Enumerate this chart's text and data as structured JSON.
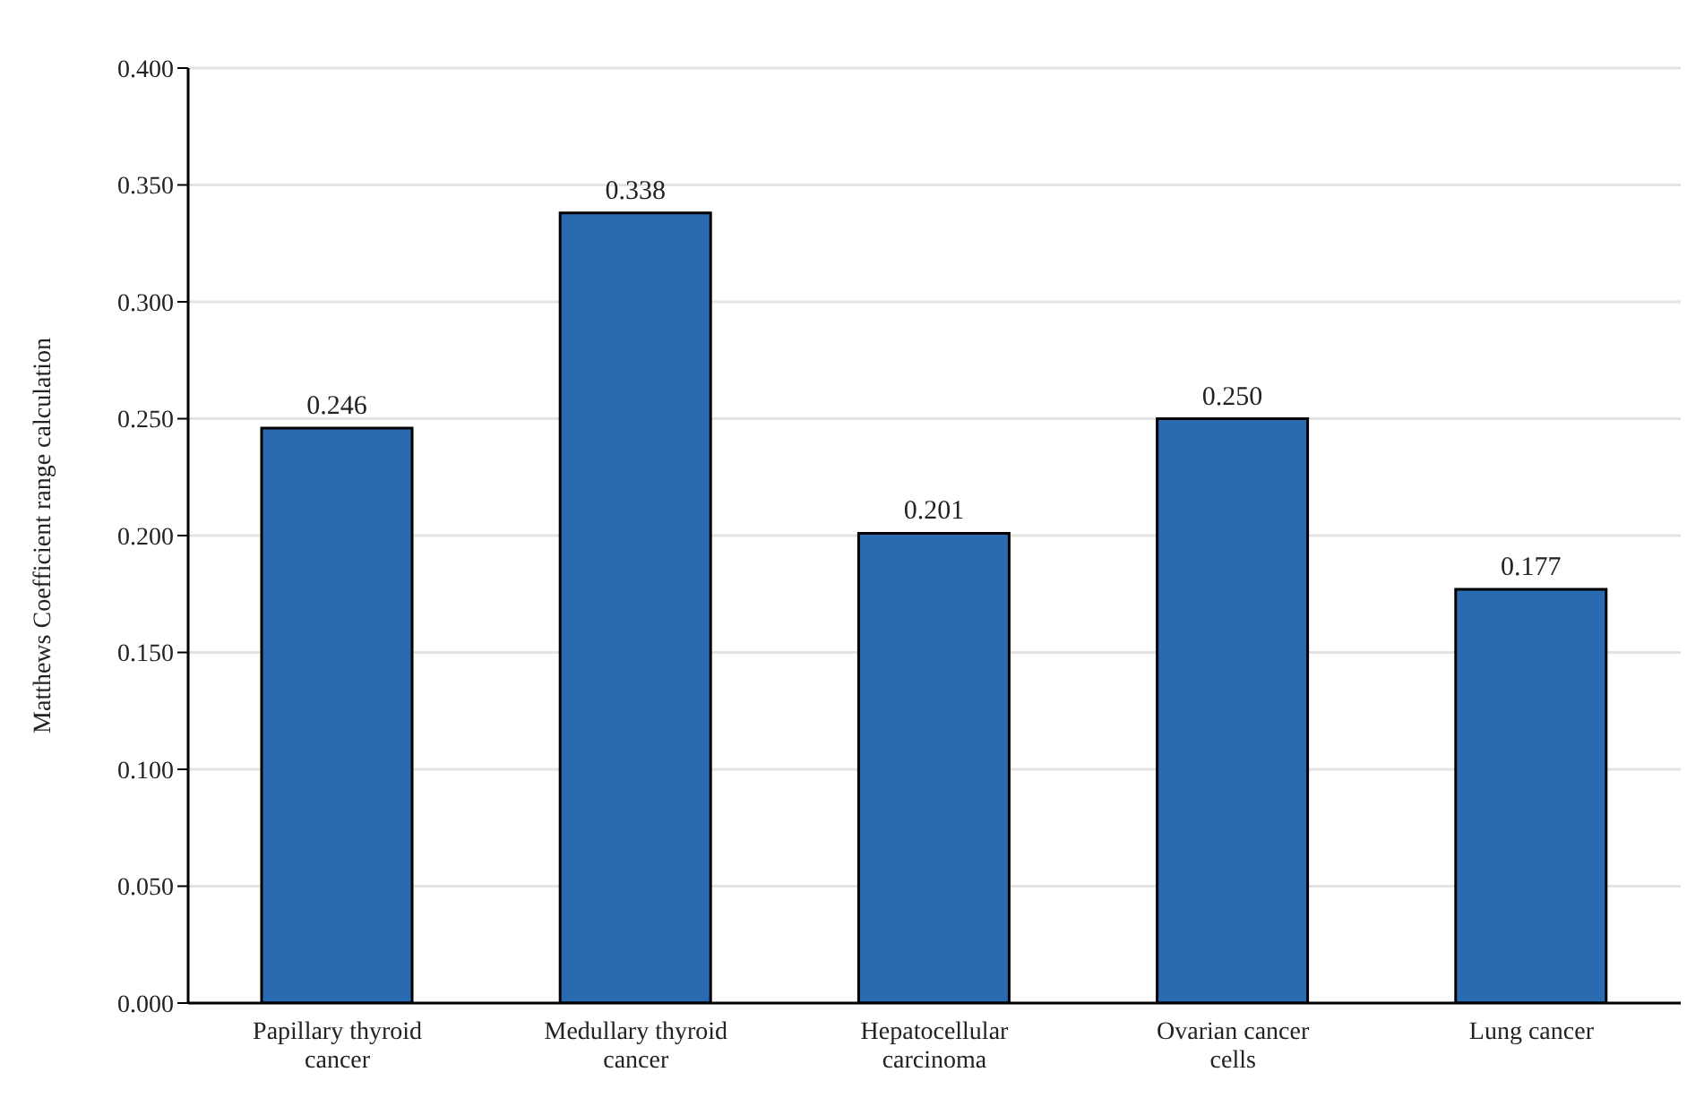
{
  "chart_data": {
    "type": "bar",
    "ylabel": "Matthews Coefficient range calculation",
    "categories": [
      "Papillary thyroid cancer",
      "Medullary thyroid cancer",
      "Hepatocellular carcinoma",
      "Ovarian cancer cells",
      "Lung cancer"
    ],
    "values": [
      0.246,
      0.338,
      0.201,
      0.25,
      0.177
    ],
    "value_labels": [
      "0.246",
      "0.338",
      "0.201",
      "0.250",
      "0.177"
    ],
    "color": "#2a6ab0",
    "ylim": [
      0,
      0.4
    ],
    "yticks": [
      {
        "value": 0,
        "label": "0.000"
      },
      {
        "value": 0.05,
        "label": "0.050"
      },
      {
        "value": 0.1,
        "label": "0.100"
      },
      {
        "value": 0.15,
        "label": "0.150"
      },
      {
        "value": 0.2,
        "label": "0.200"
      },
      {
        "value": 0.25,
        "label": "0.250"
      },
      {
        "value": 0.3,
        "label": "0.300"
      },
      {
        "value": 0.35,
        "label": "0.350"
      },
      {
        "value": 0.4,
        "label": "0.400"
      }
    ],
    "grid": "y"
  }
}
